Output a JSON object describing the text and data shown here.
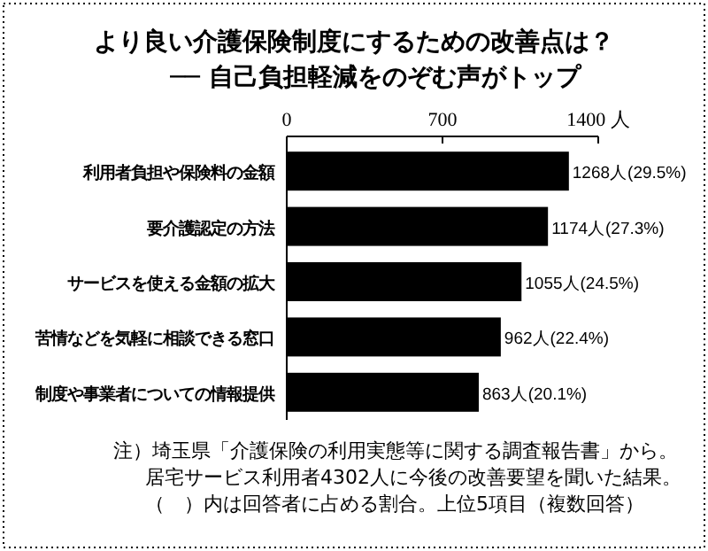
{
  "chart_data": {
    "type": "bar",
    "orientation": "horizontal",
    "title": "より良い介護保険制度にするための改善点は？",
    "subtitle": "── 自己負担軽減をのぞむ声がトップ",
    "categories": [
      "利用者負担や保険料の金額",
      "要介護認定の方法",
      "サービスを使える金額の拡大",
      "苦情などを気軽に相談できる窓口",
      "制度や事業者についての情報提供"
    ],
    "values": [
      1268,
      1174,
      1055,
      962,
      863
    ],
    "value_labels": [
      "1268人(29.5%)",
      "1174人(27.3%)",
      "1055人(24.5%)",
      "962人(22.4%)",
      "863人(20.1%)"
    ],
    "color": "#000000",
    "xlim": [
      0,
      1400
    ],
    "xticks": [
      0,
      700,
      {
        "value": 1400,
        "label": "1400 人"
      }
    ],
    "annotations": [
      "注）埼玉県「介護保険の利用実態等に関する調査報告書」から。",
      "居宅サービス利用者4302人に今後の改善要望を聞いた結果。",
      "（　）内は回答者に占める割合。上位5項目（複数回答）"
    ]
  }
}
